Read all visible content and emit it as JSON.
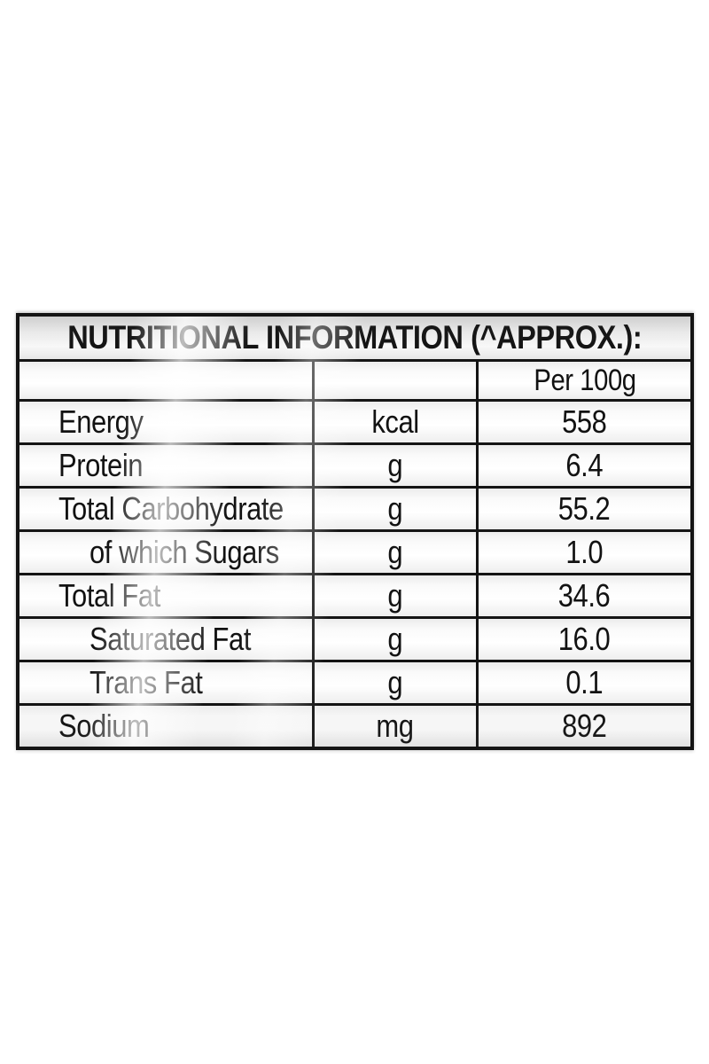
{
  "table": {
    "title": "NUTRITIONAL INFORMATION (^APPROX.):",
    "per_100g_header": "Per 100g",
    "columns": [
      "nutrient",
      "unit",
      "per_100g"
    ],
    "rows": [
      {
        "nutrient": "Energy",
        "unit": "kcal",
        "per_100g": "558",
        "indent": false
      },
      {
        "nutrient": "Protein",
        "unit": "g",
        "per_100g": "6.4",
        "indent": false
      },
      {
        "nutrient": "Total Carbohydrate",
        "unit": "g",
        "per_100g": "55.2",
        "indent": false
      },
      {
        "nutrient": "of which Sugars",
        "unit": "g",
        "per_100g": "1.0",
        "indent": true
      },
      {
        "nutrient": "Total Fat",
        "unit": "g",
        "per_100g": "34.6",
        "indent": false
      },
      {
        "nutrient": "Saturated Fat",
        "unit": "g",
        "per_100g": "16.0",
        "indent": true
      },
      {
        "nutrient": "Trans Fat",
        "unit": "g",
        "per_100g": "0.1",
        "indent": true
      },
      {
        "nutrient": "Sodium",
        "unit": "mg",
        "per_100g": "892",
        "indent": false
      }
    ],
    "colors": {
      "border": "#141414",
      "text": "#121212",
      "background": "#ffffff",
      "sheen": "#ffffff"
    }
  }
}
